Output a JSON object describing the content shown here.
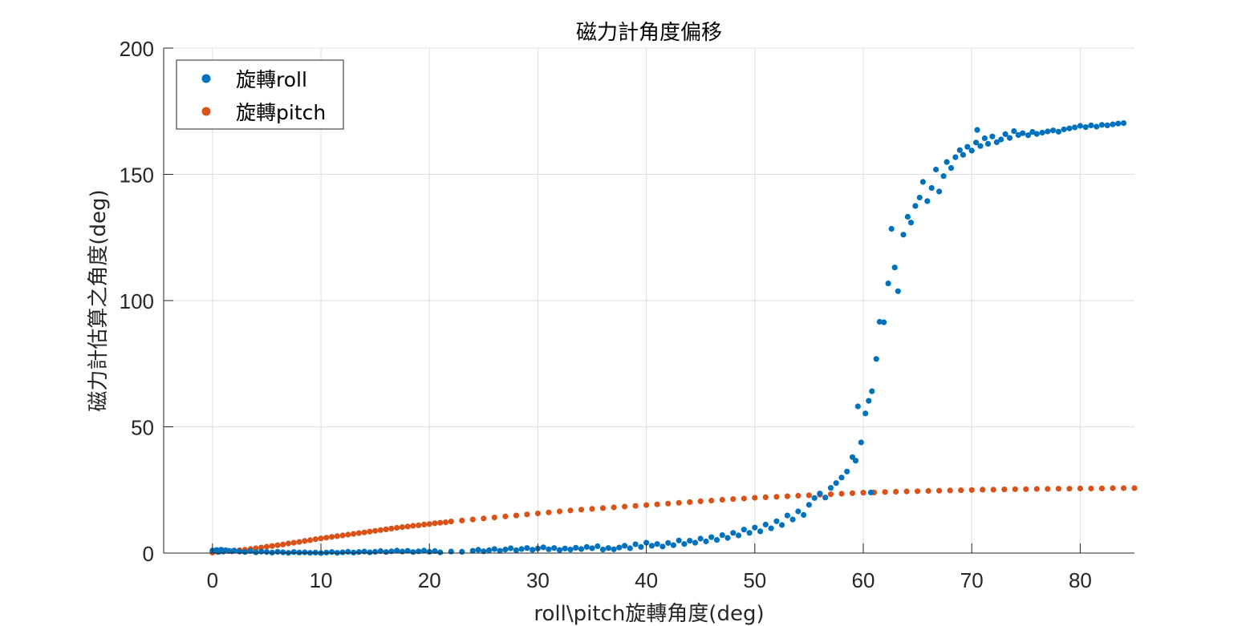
{
  "chart_data": {
    "type": "scatter",
    "title": "磁力計角度偏移",
    "xlabel": "roll\\pitch旋轉角度(deg)",
    "ylabel": "磁力計估算之角度(deg)",
    "xlim": [
      -4.5,
      85
    ],
    "ylim": [
      0,
      200
    ],
    "xticks": [
      0,
      10,
      20,
      30,
      40,
      50,
      60,
      70,
      80
    ],
    "yticks": [
      0,
      50,
      100,
      150,
      200
    ],
    "grid": true,
    "legend": "top-left",
    "series": [
      {
        "name": "旋轉roll",
        "color": "#0072BD",
        "points": [
          [
            0,
            1.0
          ],
          [
            0.2,
            0.8
          ],
          [
            0.4,
            1.2
          ],
          [
            0.6,
            0.5
          ],
          [
            0.8,
            1.3
          ],
          [
            1.0,
            0.6
          ],
          [
            1.2,
            1.1
          ],
          [
            1.5,
            0.9
          ],
          [
            1.8,
            0.7
          ],
          [
            2.0,
            1.0
          ],
          [
            2.5,
            0.6
          ],
          [
            3.0,
            0.4
          ],
          [
            3.5,
            0.8
          ],
          [
            4.0,
            0.3
          ],
          [
            4.5,
            0.6
          ],
          [
            5.0,
            0.4
          ],
          [
            5.5,
            0.2
          ],
          [
            6.0,
            0.5
          ],
          [
            6.5,
            0.3
          ],
          [
            7.0,
            0.1
          ],
          [
            7.5,
            0.4
          ],
          [
            8.0,
            0.2
          ],
          [
            8.5,
            0.3
          ],
          [
            9.0,
            0.1
          ],
          [
            9.5,
            0.2
          ],
          [
            10.0,
            0.0
          ],
          [
            10.5,
            0.2
          ],
          [
            11.0,
            0.4
          ],
          [
            11.5,
            0.1
          ],
          [
            12.0,
            0.3
          ],
          [
            12.5,
            0.5
          ],
          [
            13.0,
            0.2
          ],
          [
            13.5,
            0.4
          ],
          [
            14.0,
            0.6
          ],
          [
            14.5,
            0.3
          ],
          [
            15.0,
            0.5
          ],
          [
            15.5,
            0.8
          ],
          [
            16.0,
            0.4
          ],
          [
            16.5,
            0.7
          ],
          [
            17.0,
            1.0
          ],
          [
            17.5,
            0.6
          ],
          [
            18.0,
            0.9
          ],
          [
            18.5,
            0.4
          ],
          [
            19.0,
            0.7
          ],
          [
            19.5,
            1.0
          ],
          [
            20.0,
            0.5
          ],
          [
            20.5,
            0.8
          ],
          [
            21.0,
            0.3
          ],
          [
            22.0,
            0.6
          ],
          [
            23.0,
            0.5
          ],
          [
            24.0,
            0.9
          ],
          [
            24.5,
            1.3
          ],
          [
            25.0,
            0.7
          ],
          [
            25.5,
            1.1
          ],
          [
            26.0,
            1.6
          ],
          [
            26.5,
            0.9
          ],
          [
            27.0,
            1.4
          ],
          [
            27.5,
            1.9
          ],
          [
            28.0,
            1.1
          ],
          [
            28.5,
            1.6
          ],
          [
            29.0,
            2.0
          ],
          [
            29.5,
            1.3
          ],
          [
            30.0,
            1.8
          ],
          [
            30.5,
            2.3
          ],
          [
            31.0,
            1.5
          ],
          [
            31.5,
            2.0
          ],
          [
            32.0,
            1.2
          ],
          [
            32.5,
            1.8
          ],
          [
            33.0,
            1.4
          ],
          [
            33.5,
            2.1
          ],
          [
            34.0,
            1.6
          ],
          [
            34.5,
            2.4
          ],
          [
            35.0,
            1.9
          ],
          [
            35.5,
            2.7
          ],
          [
            36.0,
            1.4
          ],
          [
            36.5,
            2.0
          ],
          [
            37.0,
            1.5
          ],
          [
            37.5,
            2.2
          ],
          [
            38.0,
            2.9
          ],
          [
            38.5,
            1.9
          ],
          [
            39.0,
            3.5
          ],
          [
            39.5,
            2.4
          ],
          [
            40.0,
            4.1
          ],
          [
            40.5,
            2.9
          ],
          [
            41.0,
            3.6
          ],
          [
            41.5,
            2.6
          ],
          [
            42.0,
            4.0
          ],
          [
            42.5,
            3.1
          ],
          [
            43.0,
            5.0
          ],
          [
            43.5,
            3.6
          ],
          [
            44.0,
            4.9
          ],
          [
            44.5,
            4.1
          ],
          [
            45.0,
            5.7
          ],
          [
            45.5,
            4.6
          ],
          [
            46.0,
            6.3
          ],
          [
            46.5,
            5.2
          ],
          [
            47.0,
            7.1
          ],
          [
            47.5,
            6.0
          ],
          [
            48.0,
            8.0
          ],
          [
            48.5,
            7.0
          ],
          [
            49.0,
            9.3
          ],
          [
            49.5,
            8.0
          ],
          [
            50.0,
            10.1
          ],
          [
            50.5,
            8.6
          ],
          [
            51.0,
            11.3
          ],
          [
            51.5,
            9.8
          ],
          [
            52.0,
            12.6
          ],
          [
            52.5,
            11.1
          ],
          [
            53.0,
            14.9
          ],
          [
            53.5,
            13.3
          ],
          [
            54.0,
            16.5
          ],
          [
            54.5,
            15.1
          ],
          [
            55.0,
            19.1
          ],
          [
            55.5,
            21.8
          ],
          [
            56.0,
            23.6
          ],
          [
            56.5,
            22.0
          ],
          [
            57.0,
            25.8
          ],
          [
            57.5,
            27.7
          ],
          [
            58.0,
            29.9
          ],
          [
            58.5,
            32.3
          ],
          [
            59.0,
            38.0
          ],
          [
            59.3,
            36.6
          ],
          [
            59.5,
            58.1
          ],
          [
            59.8,
            43.8
          ],
          [
            60.2,
            55.3
          ],
          [
            60.5,
            60.3
          ],
          [
            60.8,
            64.1
          ],
          [
            61.2,
            76.9
          ],
          [
            61.5,
            91.6
          ],
          [
            61.9,
            91.4
          ],
          [
            62.3,
            106.8
          ],
          [
            62.6,
            128.4
          ],
          [
            62.9,
            113.1
          ],
          [
            63.2,
            103.7
          ],
          [
            63.7,
            126.1
          ],
          [
            64.1,
            133.2
          ],
          [
            64.4,
            130.9
          ],
          [
            64.8,
            137.5
          ],
          [
            65.2,
            140.8
          ],
          [
            65.5,
            147.0
          ],
          [
            65.9,
            139.4
          ],
          [
            66.3,
            144.6
          ],
          [
            66.7,
            151.9
          ],
          [
            67.0,
            143.2
          ],
          [
            67.4,
            149.3
          ],
          [
            67.7,
            154.9
          ],
          [
            68.1,
            152.5
          ],
          [
            68.5,
            156.8
          ],
          [
            68.9,
            159.6
          ],
          [
            69.2,
            157.7
          ],
          [
            69.6,
            160.9
          ],
          [
            70.0,
            159.4
          ],
          [
            70.4,
            162.6
          ],
          [
            70.8,
            161.2
          ],
          [
            71.2,
            164.3
          ],
          [
            71.5,
            162.1
          ],
          [
            71.9,
            165.0
          ],
          [
            72.3,
            162.7
          ],
          [
            72.7,
            163.8
          ],
          [
            73.1,
            165.9
          ],
          [
            73.5,
            164.4
          ],
          [
            73.9,
            167.1
          ],
          [
            74.3,
            165.6
          ],
          [
            74.7,
            166.3
          ],
          [
            75.2,
            165.5
          ],
          [
            75.6,
            166.8
          ],
          [
            76.0,
            166.0
          ],
          [
            76.5,
            166.5
          ],
          [
            77.0,
            167.0
          ],
          [
            77.5,
            167.4
          ],
          [
            78.0,
            166.9
          ],
          [
            78.5,
            167.8
          ],
          [
            79.0,
            168.2
          ],
          [
            79.5,
            168.6
          ],
          [
            80.0,
            169.2
          ],
          [
            80.5,
            168.7
          ],
          [
            81.0,
            169.4
          ],
          [
            81.5,
            168.9
          ],
          [
            82.0,
            169.6
          ],
          [
            82.5,
            169.4
          ],
          [
            83.0,
            169.8
          ],
          [
            83.5,
            170.1
          ],
          [
            84.0,
            170.3
          ],
          [
            70.5,
            167.6
          ],
          [
            60.7,
            24.0
          ]
        ]
      },
      {
        "name": "旋轉pitch",
        "color": "#D95319",
        "points": [
          [
            0,
            0.2
          ],
          [
            0.5,
            0.4
          ],
          [
            1.0,
            0.6
          ],
          [
            1.5,
            0.8
          ],
          [
            2.0,
            0.9
          ],
          [
            2.5,
            1.1
          ],
          [
            3.0,
            1.3
          ],
          [
            3.5,
            1.6
          ],
          [
            4.0,
            1.9
          ],
          [
            4.5,
            2.2
          ],
          [
            5.0,
            2.5
          ],
          [
            5.5,
            2.8
          ],
          [
            6.0,
            3.1
          ],
          [
            6.5,
            3.4
          ],
          [
            7.0,
            3.8
          ],
          [
            7.5,
            4.1
          ],
          [
            8.0,
            4.4
          ],
          [
            8.5,
            4.8
          ],
          [
            9.0,
            5.1
          ],
          [
            9.5,
            5.5
          ],
          [
            10.0,
            5.8
          ],
          [
            10.5,
            6.1
          ],
          [
            11.0,
            6.4
          ],
          [
            11.5,
            6.7
          ],
          [
            12.0,
            7.0
          ],
          [
            12.5,
            7.3
          ],
          [
            13.0,
            7.6
          ],
          [
            13.5,
            7.9
          ],
          [
            14.0,
            8.2
          ],
          [
            14.5,
            8.5
          ],
          [
            15.0,
            8.8
          ],
          [
            15.5,
            9.1
          ],
          [
            16.0,
            9.4
          ],
          [
            16.5,
            9.7
          ],
          [
            17.0,
            10.0
          ],
          [
            17.5,
            10.3
          ],
          [
            18.0,
            10.5
          ],
          [
            18.5,
            10.8
          ],
          [
            19.0,
            11.0
          ],
          [
            19.5,
            11.3
          ],
          [
            20.0,
            11.5
          ],
          [
            20.5,
            11.8
          ],
          [
            21.0,
            12.0
          ],
          [
            21.5,
            12.2
          ],
          [
            22.0,
            12.5
          ],
          [
            23.0,
            12.9
          ],
          [
            24.0,
            13.3
          ],
          [
            25.0,
            13.7
          ],
          [
            26.0,
            14.1
          ],
          [
            27.0,
            14.5
          ],
          [
            28.0,
            14.9
          ],
          [
            29.0,
            15.3
          ],
          [
            30.0,
            15.7
          ],
          [
            31.0,
            16.1
          ],
          [
            32.0,
            16.5
          ],
          [
            33.0,
            16.9
          ],
          [
            34.0,
            17.2
          ],
          [
            35.0,
            17.5
          ],
          [
            36.0,
            17.8
          ],
          [
            37.0,
            18.1
          ],
          [
            38.0,
            18.4
          ],
          [
            39.0,
            18.7
          ],
          [
            40.0,
            19.0
          ],
          [
            41.0,
            19.3
          ],
          [
            42.0,
            19.6
          ],
          [
            43.0,
            19.9
          ],
          [
            44.0,
            20.2
          ],
          [
            45.0,
            20.5
          ],
          [
            46.0,
            20.8
          ],
          [
            47.0,
            21.1
          ],
          [
            48.0,
            21.4
          ],
          [
            49.0,
            21.6
          ],
          [
            50.0,
            21.9
          ],
          [
            51.0,
            22.1
          ],
          [
            52.0,
            22.3
          ],
          [
            53.0,
            22.5
          ],
          [
            54.0,
            22.7
          ],
          [
            55.0,
            22.9
          ],
          [
            56.0,
            23.1
          ],
          [
            57.0,
            23.3
          ],
          [
            58.0,
            23.5
          ],
          [
            59.0,
            23.7
          ],
          [
            60.0,
            23.9
          ],
          [
            61.0,
            24.0
          ],
          [
            62.0,
            24.2
          ],
          [
            63.0,
            24.3
          ],
          [
            64.0,
            24.4
          ],
          [
            65.0,
            24.5
          ],
          [
            66.0,
            24.6
          ],
          [
            67.0,
            24.7
          ],
          [
            68.0,
            24.8
          ],
          [
            69.0,
            24.9
          ],
          [
            70.0,
            25.0
          ],
          [
            71.0,
            25.1
          ],
          [
            72.0,
            25.1
          ],
          [
            73.0,
            25.2
          ],
          [
            74.0,
            25.3
          ],
          [
            75.0,
            25.3
          ],
          [
            76.0,
            25.4
          ],
          [
            77.0,
            25.4
          ],
          [
            78.0,
            25.5
          ],
          [
            79.0,
            25.5
          ],
          [
            80.0,
            25.6
          ],
          [
            81.0,
            25.6
          ],
          [
            82.0,
            25.6
          ],
          [
            83.0,
            25.7
          ],
          [
            84.0,
            25.7
          ],
          [
            85.0,
            25.7
          ]
        ]
      }
    ]
  }
}
